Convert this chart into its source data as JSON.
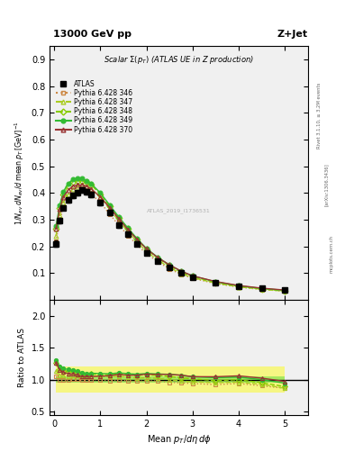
{
  "title_top": "13000 GeV pp",
  "title_right": "Z+Jet",
  "plot_title": "Scalar Σ(p_T) (ATLAS UE in Z production)",
  "ylabel_main": "1/N_{ev} dN_{ev}/d mean p_T [GeV]^{-1}",
  "ylabel_ratio": "Ratio to ATLAS",
  "xlabel": "Mean p_T/d\\eta d\\phi",
  "watermark": "ATLAS_2019_I1736531",
  "side_text1": "Rivet 3.1.10, ≥ 3.2M events",
  "side_text2": "[arXiv:1306.3436]",
  "side_text3": "mcplots.cern.ch",
  "ylim_main": [
    0.0,
    0.95
  ],
  "ylim_ratio": [
    0.45,
    2.25
  ],
  "yticks_main": [
    0.1,
    0.2,
    0.3,
    0.4,
    0.5,
    0.6,
    0.7,
    0.8,
    0.9
  ],
  "yticks_ratio": [
    0.5,
    1.0,
    1.5,
    2.0
  ],
  "xlim": [
    -0.1,
    5.5
  ],
  "xticks": [
    0,
    1,
    2,
    3,
    4,
    5
  ],
  "atlas_x": [
    0.04,
    0.12,
    0.2,
    0.3,
    0.4,
    0.5,
    0.6,
    0.7,
    0.8,
    1.0,
    1.2,
    1.4,
    1.6,
    1.8,
    2.0,
    2.25,
    2.5,
    2.75,
    3.0,
    3.5,
    4.0,
    4.5,
    5.0
  ],
  "atlas_y": [
    0.21,
    0.295,
    0.345,
    0.375,
    0.39,
    0.4,
    0.41,
    0.405,
    0.395,
    0.365,
    0.325,
    0.28,
    0.245,
    0.21,
    0.175,
    0.145,
    0.12,
    0.1,
    0.085,
    0.065,
    0.05,
    0.042,
    0.037
  ],
  "atlas_err": [
    0.012,
    0.01,
    0.01,
    0.01,
    0.01,
    0.01,
    0.01,
    0.01,
    0.01,
    0.01,
    0.01,
    0.01,
    0.008,
    0.008,
    0.007,
    0.007,
    0.006,
    0.005,
    0.005,
    0.004,
    0.003,
    0.003,
    0.002
  ],
  "p346_x": [
    0.04,
    0.12,
    0.2,
    0.3,
    0.4,
    0.5,
    0.6,
    0.7,
    0.8,
    1.0,
    1.2,
    1.4,
    1.6,
    1.8,
    2.0,
    2.25,
    2.5,
    2.75,
    3.0,
    3.5,
    4.0,
    4.5,
    5.0
  ],
  "p346_y": [
    0.22,
    0.295,
    0.345,
    0.375,
    0.395,
    0.405,
    0.41,
    0.405,
    0.395,
    0.365,
    0.32,
    0.28,
    0.24,
    0.205,
    0.172,
    0.142,
    0.115,
    0.095,
    0.08,
    0.06,
    0.047,
    0.038,
    0.032
  ],
  "p346_color": "#cc8844",
  "p346_style": "dotted",
  "p346_marker": "s",
  "p346_mfc": "none",
  "p347_x": [
    0.04,
    0.12,
    0.2,
    0.3,
    0.4,
    0.5,
    0.6,
    0.7,
    0.8,
    1.0,
    1.2,
    1.4,
    1.6,
    1.8,
    2.0,
    2.25,
    2.5,
    2.75,
    3.0,
    3.5,
    4.0,
    4.5,
    5.0
  ],
  "p347_y": [
    0.24,
    0.315,
    0.365,
    0.395,
    0.415,
    0.425,
    0.43,
    0.425,
    0.415,
    0.385,
    0.34,
    0.295,
    0.255,
    0.215,
    0.18,
    0.148,
    0.12,
    0.098,
    0.082,
    0.062,
    0.048,
    0.039,
    0.032
  ],
  "p347_color": "#aacc22",
  "p347_style": "dashed",
  "p347_marker": "^",
  "p347_mfc": "none",
  "p348_x": [
    0.04,
    0.12,
    0.2,
    0.3,
    0.4,
    0.5,
    0.6,
    0.7,
    0.8,
    1.0,
    1.2,
    1.4,
    1.6,
    1.8,
    2.0,
    2.25,
    2.5,
    2.75,
    3.0,
    3.5,
    4.0,
    4.5,
    5.0
  ],
  "p348_y": [
    0.265,
    0.345,
    0.395,
    0.425,
    0.44,
    0.445,
    0.445,
    0.44,
    0.43,
    0.395,
    0.35,
    0.305,
    0.265,
    0.225,
    0.188,
    0.155,
    0.126,
    0.103,
    0.086,
    0.064,
    0.05,
    0.04,
    0.033
  ],
  "p348_color": "#88cc00",
  "p348_style": "dashed",
  "p348_marker": "D",
  "p348_mfc": "none",
  "p349_x": [
    0.04,
    0.12,
    0.2,
    0.3,
    0.4,
    0.5,
    0.6,
    0.7,
    0.8,
    1.0,
    1.2,
    1.4,
    1.6,
    1.8,
    2.0,
    2.25,
    2.5,
    2.75,
    3.0,
    3.5,
    4.0,
    4.5,
    5.0
  ],
  "p349_y": [
    0.275,
    0.355,
    0.405,
    0.435,
    0.45,
    0.455,
    0.455,
    0.445,
    0.435,
    0.4,
    0.355,
    0.31,
    0.268,
    0.228,
    0.192,
    0.158,
    0.13,
    0.107,
    0.089,
    0.067,
    0.052,
    0.042,
    0.035
  ],
  "p349_color": "#33bb33",
  "p349_style": "solid",
  "p349_marker": "o",
  "p349_mfc": "#33bb33",
  "p370_x": [
    0.04,
    0.12,
    0.2,
    0.3,
    0.4,
    0.5,
    0.6,
    0.7,
    0.8,
    1.0,
    1.2,
    1.4,
    1.6,
    1.8,
    2.0,
    2.25,
    2.5,
    2.75,
    3.0,
    3.5,
    4.0,
    4.5,
    5.0
  ],
  "p370_y": [
    0.265,
    0.34,
    0.385,
    0.41,
    0.425,
    0.43,
    0.43,
    0.425,
    0.415,
    0.385,
    0.345,
    0.303,
    0.262,
    0.225,
    0.19,
    0.157,
    0.13,
    0.107,
    0.089,
    0.068,
    0.053,
    0.043,
    0.036
  ],
  "p370_color": "#993333",
  "p370_style": "solid",
  "p370_marker": "^",
  "p370_mfc": "none",
  "bg_color": "#f0f0f0",
  "ratio_346_y": [
    1.05,
    1.0,
    1.0,
    1.0,
    1.01,
    1.01,
    1.0,
    1.0,
    1.0,
    1.0,
    0.985,
    1.0,
    0.98,
    0.976,
    0.983,
    0.979,
    0.958,
    0.95,
    0.941,
    0.923,
    0.94,
    0.905,
    0.865
  ],
  "ratio_347_y": [
    1.14,
    1.07,
    1.06,
    1.05,
    1.06,
    1.06,
    1.05,
    1.05,
    1.05,
    1.055,
    1.046,
    1.054,
    1.041,
    1.024,
    1.029,
    1.021,
    1.0,
    0.98,
    0.965,
    0.954,
    0.96,
    0.929,
    0.865
  ],
  "ratio_348_y": [
    1.26,
    1.17,
    1.14,
    1.13,
    1.13,
    1.11,
    1.085,
    1.085,
    1.089,
    1.082,
    1.077,
    1.089,
    1.082,
    1.071,
    1.074,
    1.069,
    1.05,
    1.03,
    1.012,
    0.985,
    1.0,
    0.952,
    0.892
  ],
  "ratio_349_y": [
    1.31,
    1.2,
    1.174,
    1.16,
    1.154,
    1.138,
    1.11,
    1.099,
    1.101,
    1.096,
    1.092,
    1.107,
    1.094,
    1.086,
    1.097,
    1.09,
    1.083,
    1.07,
    1.047,
    1.031,
    1.04,
    1.0,
    0.946
  ],
  "ratio_370_y": [
    1.262,
    1.152,
    1.116,
    1.093,
    1.09,
    1.075,
    1.049,
    1.049,
    1.051,
    1.055,
    1.062,
    1.082,
    1.069,
    1.071,
    1.086,
    1.083,
    1.083,
    1.07,
    1.047,
    1.046,
    1.06,
    1.024,
    0.973
  ],
  "band_outer_lo": 0.8,
  "band_outer_hi": 1.2,
  "band_inner_lo": 0.95,
  "band_inner_hi": 1.05
}
